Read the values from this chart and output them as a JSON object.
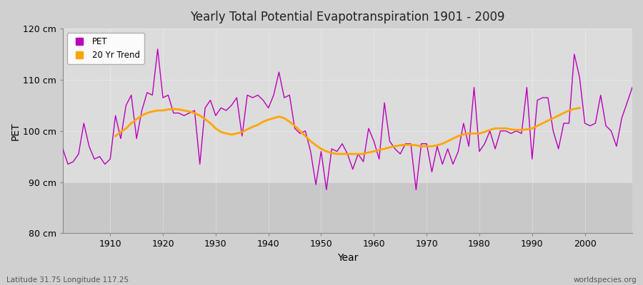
{
  "title": "Yearly Total Potential Evapotranspiration 1901 - 2009",
  "xlabel": "Year",
  "ylabel": "PET",
  "xlim": [
    1901,
    2009
  ],
  "ylim": [
    80,
    120
  ],
  "yticks": [
    80,
    90,
    100,
    110,
    120
  ],
  "ytick_labels": [
    "80 cm",
    "90 cm",
    "100 cm",
    "110 cm",
    "120 cm"
  ],
  "xticks": [
    1910,
    1920,
    1930,
    1940,
    1950,
    1960,
    1970,
    1980,
    1990,
    2000
  ],
  "bg_color_upper": "#dcdcdc",
  "bg_color_lower": "#c8c8c8",
  "pet_color": "#bb00bb",
  "trend_color": "#ffa500",
  "subtitle_left": "Latitude 31.75 Longitude 117.25",
  "subtitle_right": "worldspecies.org",
  "threshold": 90,
  "pet_values": [
    96.5,
    93.5,
    94.0,
    95.5,
    101.5,
    97.0,
    94.5,
    95.0,
    93.5,
    94.5,
    103.0,
    98.5,
    105.0,
    107.0,
    98.5,
    104.0,
    107.5,
    107.0,
    116.0,
    106.5,
    107.0,
    103.5,
    103.5,
    103.0,
    103.5,
    104.0,
    93.5,
    104.5,
    106.0,
    103.0,
    104.5,
    104.0,
    105.0,
    106.5,
    99.0,
    107.0,
    106.5,
    107.0,
    106.0,
    104.5,
    107.0,
    111.5,
    106.5,
    107.0,
    100.5,
    99.5,
    100.0,
    96.0,
    89.5,
    96.0,
    88.5,
    96.5,
    96.0,
    97.5,
    95.5,
    92.5,
    95.5,
    94.0,
    100.5,
    98.0,
    94.5,
    105.5,
    98.0,
    96.5,
    95.5,
    97.5,
    97.5,
    88.5,
    97.5,
    97.5,
    92.0,
    97.0,
    93.5,
    96.5,
    93.5,
    96.0,
    101.5,
    97.0,
    108.5,
    96.0,
    97.5,
    100.0,
    96.5,
    100.0,
    100.0,
    99.5,
    100.0,
    99.5,
    108.5,
    94.5,
    106.0,
    106.5,
    106.5,
    100.0,
    96.5,
    101.5,
    101.5,
    115.0,
    110.5,
    101.5,
    101.0,
    101.5,
    107.0,
    101.0,
    100.0,
    97.0,
    102.5,
    105.5,
    108.5
  ],
  "trend_values": [
    null,
    null,
    null,
    null,
    null,
    null,
    null,
    null,
    null,
    null,
    99.0,
    99.8,
    100.5,
    101.5,
    102.3,
    103.0,
    103.5,
    103.8,
    104.0,
    104.0,
    104.2,
    104.3,
    104.2,
    104.0,
    103.8,
    103.5,
    103.0,
    102.3,
    101.5,
    100.5,
    99.8,
    99.5,
    99.3,
    99.5,
    99.8,
    100.3,
    100.8,
    101.2,
    101.8,
    102.2,
    102.5,
    102.8,
    102.5,
    101.8,
    101.0,
    100.0,
    99.0,
    98.0,
    97.2,
    96.5,
    96.0,
    95.7,
    95.5,
    95.5,
    95.5,
    95.5,
    95.5,
    95.5,
    95.8,
    96.0,
    96.3,
    96.5,
    96.8,
    97.0,
    97.2,
    97.3,
    97.3,
    97.2,
    97.0,
    97.0,
    97.0,
    97.2,
    97.5,
    98.0,
    98.5,
    99.0,
    99.3,
    99.5,
    99.5,
    99.5,
    99.8,
    100.2,
    100.5,
    100.5,
    100.5,
    100.3,
    100.2,
    100.2,
    100.3,
    100.5,
    101.0,
    101.5,
    102.0,
    102.5,
    103.0,
    103.5,
    104.0,
    104.3,
    104.5,
    null,
    null,
    null,
    null,
    null,
    null,
    null,
    null,
    null,
    null
  ]
}
